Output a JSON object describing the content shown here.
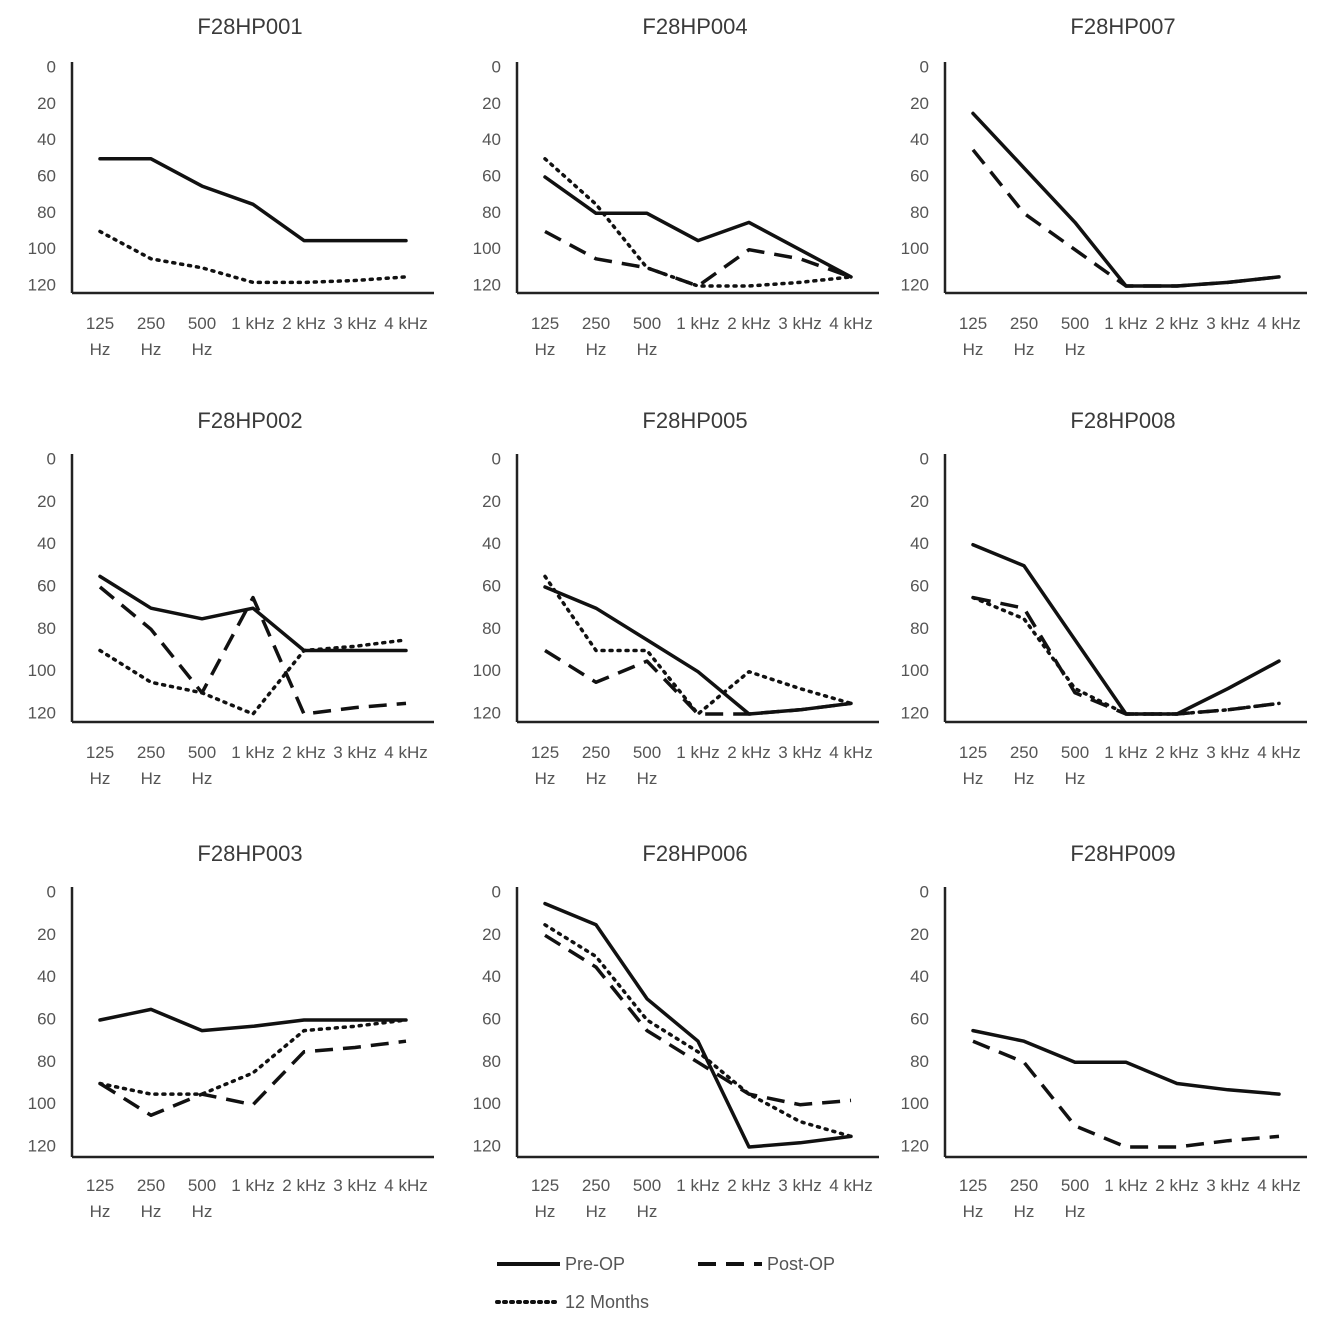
{
  "chart_data": {
    "type": "line",
    "ylim": [
      0,
      120
    ],
    "y_inverted": true,
    "yticks": [
      "0",
      "20",
      "40",
      "60",
      "80",
      "100",
      "120"
    ],
    "categories": [
      [
        "125",
        "Hz"
      ],
      [
        "250",
        "Hz"
      ],
      [
        "500",
        "Hz"
      ],
      [
        "1 kHz"
      ],
      [
        "2 kHz"
      ],
      [
        "3 kHz"
      ],
      [
        "4 kHz"
      ]
    ],
    "legend": {
      "pre": "Pre-OP",
      "post": "Post-OP",
      "m12": "12 Months"
    },
    "colors": {
      "line": "#111111",
      "axis": "#222222",
      "text": "#555555"
    },
    "panels": [
      {
        "title": "F28HP001",
        "series": {
          "pre": [
            50,
            50,
            65,
            75,
            95,
            95,
            95
          ],
          "m12": [
            90,
            105,
            110,
            118,
            118,
            117,
            115
          ]
        }
      },
      {
        "title": "F28HP004",
        "series": {
          "pre": [
            60,
            80,
            80,
            95,
            85,
            100,
            115
          ],
          "post": [
            90,
            105,
            110,
            120,
            100,
            105,
            115
          ],
          "m12": [
            50,
            75,
            110,
            120,
            120,
            118,
            115
          ]
        }
      },
      {
        "title": "F28HP007",
        "series": {
          "pre": [
            25,
            55,
            85,
            120,
            120,
            118,
            115
          ],
          "post": [
            45,
            80,
            100,
            120,
            120,
            118,
            115
          ]
        }
      },
      {
        "title": "F28HP002",
        "series": {
          "pre": [
            55,
            70,
            75,
            70,
            90,
            90,
            90
          ],
          "post": [
            60,
            80,
            110,
            65,
            120,
            117,
            115
          ],
          "m12": [
            90,
            105,
            110,
            120,
            90,
            88,
            85
          ]
        }
      },
      {
        "title": "F28HP005",
        "series": {
          "pre": [
            60,
            70,
            85,
            100,
            120,
            118,
            115
          ],
          "post": [
            90,
            105,
            95,
            120,
            120,
            118,
            115
          ],
          "m12": [
            55,
            90,
            90,
            120,
            100,
            108,
            115
          ]
        }
      },
      {
        "title": "F28HP008",
        "series": {
          "pre": [
            40,
            50,
            85,
            120,
            120,
            108,
            95
          ],
          "post": [
            65,
            70,
            110,
            120,
            120,
            118,
            115
          ],
          "m12": [
            65,
            75,
            108,
            120,
            120,
            118,
            115
          ]
        }
      },
      {
        "title": "F28HP003",
        "series": {
          "pre": [
            60,
            55,
            65,
            63,
            60,
            60,
            60
          ],
          "post": [
            90,
            105,
            95,
            100,
            75,
            73,
            70
          ],
          "m12": [
            90,
            95,
            95,
            85,
            65,
            63,
            60
          ]
        }
      },
      {
        "title": "F28HP006",
        "series": {
          "pre": [
            5,
            15,
            50,
            70,
            120,
            118,
            115
          ],
          "post": [
            20,
            35,
            65,
            80,
            95,
            100,
            98
          ],
          "m12": [
            15,
            30,
            60,
            75,
            95,
            108,
            115
          ]
        }
      },
      {
        "title": "F28HP009",
        "series": {
          "pre": [
            65,
            70,
            80,
            80,
            90,
            93,
            95
          ],
          "post": [
            70,
            80,
            110,
            120,
            120,
            117,
            115
          ]
        }
      }
    ]
  }
}
